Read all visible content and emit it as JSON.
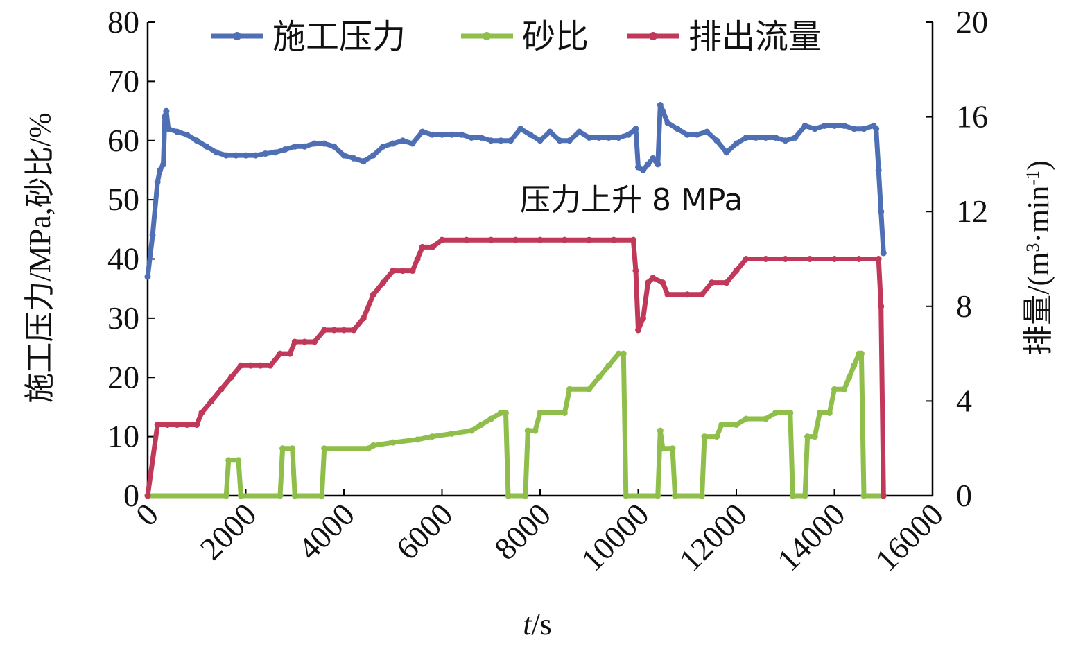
{
  "chart_data": {
    "type": "line",
    "xlabel_italic": "t",
    "xlabel_rest": "/s",
    "ylabel_left": "施工压力/MPa,砂比/%",
    "ylabel_right_a": "排量/(m",
    "ylabel_right_sup": "3",
    "ylabel_right_b": "·min",
    "ylabel_right_sup2": "-1",
    "ylabel_right_c": ")",
    "xlim": [
      0,
      16000
    ],
    "ylim_left": [
      0,
      80
    ],
    "ylim_right": [
      0,
      20
    ],
    "x_ticks": [
      "0",
      "2000",
      "4000",
      "6000",
      "8000",
      "10000",
      "12000",
      "14000",
      "16000"
    ],
    "y_left_ticks": [
      "0",
      "10",
      "20",
      "30",
      "40",
      "50",
      "60",
      "70",
      "80"
    ],
    "y_right_ticks": [
      "0",
      "4",
      "8",
      "12",
      "16",
      "20"
    ],
    "legend_position": "top",
    "annotation": "压力上升 8 MPa",
    "series": [
      {
        "name": "施工压力",
        "axis": "left",
        "color": "#4f6fb5",
        "points": [
          [
            0,
            37
          ],
          [
            100,
            44
          ],
          [
            200,
            53
          ],
          [
            250,
            55
          ],
          [
            320,
            56
          ],
          [
            350,
            64
          ],
          [
            380,
            65
          ],
          [
            420,
            62
          ],
          [
            600,
            61.5
          ],
          [
            800,
            61
          ],
          [
            1000,
            60
          ],
          [
            1200,
            59
          ],
          [
            1400,
            58
          ],
          [
            1600,
            57.5
          ],
          [
            1800,
            57.5
          ],
          [
            2000,
            57.5
          ],
          [
            2200,
            57.5
          ],
          [
            2400,
            57.8
          ],
          [
            2600,
            58
          ],
          [
            2800,
            58.5
          ],
          [
            3000,
            59
          ],
          [
            3200,
            59
          ],
          [
            3400,
            59.5
          ],
          [
            3600,
            59.5
          ],
          [
            3800,
            59
          ],
          [
            4000,
            57.5
          ],
          [
            4200,
            57
          ],
          [
            4400,
            56.5
          ],
          [
            4600,
            57.5
          ],
          [
            4800,
            59
          ],
          [
            5000,
            59.5
          ],
          [
            5200,
            60
          ],
          [
            5400,
            59.5
          ],
          [
            5600,
            61.5
          ],
          [
            5800,
            61
          ],
          [
            6000,
            61
          ],
          [
            6200,
            61
          ],
          [
            6400,
            61
          ],
          [
            6600,
            60.5
          ],
          [
            6800,
            60.5
          ],
          [
            7000,
            60
          ],
          [
            7200,
            60
          ],
          [
            7400,
            60
          ],
          [
            7600,
            62
          ],
          [
            7800,
            61
          ],
          [
            8000,
            60
          ],
          [
            8200,
            61.5
          ],
          [
            8400,
            60
          ],
          [
            8600,
            60
          ],
          [
            8800,
            61.5
          ],
          [
            9000,
            60.5
          ],
          [
            9200,
            60.5
          ],
          [
            9400,
            60.5
          ],
          [
            9600,
            60.5
          ],
          [
            9800,
            61
          ],
          [
            9950,
            62
          ],
          [
            10000,
            55.5
          ],
          [
            10100,
            55
          ],
          [
            10200,
            56
          ],
          [
            10300,
            57
          ],
          [
            10400,
            56
          ],
          [
            10450,
            66
          ],
          [
            10500,
            65
          ],
          [
            10600,
            63
          ],
          [
            10800,
            62
          ],
          [
            11000,
            61
          ],
          [
            11200,
            61
          ],
          [
            11400,
            61.5
          ],
          [
            11600,
            60
          ],
          [
            11800,
            58
          ],
          [
            12000,
            59.5
          ],
          [
            12200,
            60.5
          ],
          [
            12400,
            60.5
          ],
          [
            12600,
            60.5
          ],
          [
            12800,
            60.5
          ],
          [
            13000,
            60
          ],
          [
            13200,
            60.5
          ],
          [
            13400,
            62.5
          ],
          [
            13600,
            62
          ],
          [
            13800,
            62.5
          ],
          [
            14000,
            62.5
          ],
          [
            14200,
            62.5
          ],
          [
            14400,
            62
          ],
          [
            14600,
            62
          ],
          [
            14800,
            62.5
          ],
          [
            14850,
            62
          ],
          [
            14900,
            55
          ],
          [
            14950,
            48
          ],
          [
            15000,
            41
          ]
        ]
      },
      {
        "name": "砂比",
        "axis": "left",
        "color": "#8fbe4a",
        "points": [
          [
            0,
            0
          ],
          [
            1600,
            0
          ],
          [
            1650,
            6
          ],
          [
            1850,
            6
          ],
          [
            1900,
            0
          ],
          [
            2700,
            0
          ],
          [
            2750,
            8
          ],
          [
            2950,
            8
          ],
          [
            3000,
            0
          ],
          [
            3550,
            0
          ],
          [
            3600,
            8
          ],
          [
            4500,
            8
          ],
          [
            4600,
            8.5
          ],
          [
            5000,
            9
          ],
          [
            5500,
            9.5
          ],
          [
            5800,
            10
          ],
          [
            6200,
            10.5
          ],
          [
            6600,
            11
          ],
          [
            6800,
            12
          ],
          [
            7000,
            13
          ],
          [
            7200,
            14
          ],
          [
            7300,
            14
          ],
          [
            7350,
            0
          ],
          [
            7700,
            0
          ],
          [
            7750,
            11
          ],
          [
            7900,
            11
          ],
          [
            8000,
            14
          ],
          [
            8500,
            14
          ],
          [
            8600,
            18
          ],
          [
            9000,
            18
          ],
          [
            9200,
            20
          ],
          [
            9400,
            22
          ],
          [
            9600,
            24
          ],
          [
            9700,
            24
          ],
          [
            9750,
            0
          ],
          [
            10400,
            0
          ],
          [
            10450,
            11
          ],
          [
            10500,
            8
          ],
          [
            10700,
            8
          ],
          [
            10750,
            0
          ],
          [
            11300,
            0
          ],
          [
            11350,
            10
          ],
          [
            11600,
            10
          ],
          [
            11700,
            12
          ],
          [
            12000,
            12
          ],
          [
            12200,
            13
          ],
          [
            12600,
            13
          ],
          [
            12800,
            14
          ],
          [
            13100,
            14
          ],
          [
            13150,
            0
          ],
          [
            13400,
            0
          ],
          [
            13450,
            10
          ],
          [
            13600,
            10
          ],
          [
            13700,
            14
          ],
          [
            13900,
            14
          ],
          [
            14000,
            18
          ],
          [
            14200,
            18
          ],
          [
            14300,
            20
          ],
          [
            14400,
            22
          ],
          [
            14500,
            24
          ],
          [
            14550,
            24
          ],
          [
            14600,
            0
          ],
          [
            15000,
            0
          ]
        ]
      },
      {
        "name": "排出流量",
        "axis": "right",
        "color": "#c0395a",
        "points": [
          [
            0,
            0
          ],
          [
            200,
            3
          ],
          [
            400,
            3
          ],
          [
            600,
            3
          ],
          [
            800,
            3
          ],
          [
            1000,
            3
          ],
          [
            1100,
            3.5
          ],
          [
            1300,
            4
          ],
          [
            1500,
            4.5
          ],
          [
            1700,
            5
          ],
          [
            1900,
            5.5
          ],
          [
            2100,
            5.5
          ],
          [
            2300,
            5.5
          ],
          [
            2500,
            5.5
          ],
          [
            2700,
            6
          ],
          [
            2900,
            6
          ],
          [
            3000,
            6.5
          ],
          [
            3200,
            6.5
          ],
          [
            3400,
            6.5
          ],
          [
            3600,
            7
          ],
          [
            3800,
            7
          ],
          [
            4000,
            7
          ],
          [
            4200,
            7
          ],
          [
            4400,
            7.5
          ],
          [
            4600,
            8.5
          ],
          [
            4800,
            9
          ],
          [
            5000,
            9.5
          ],
          [
            5200,
            9.5
          ],
          [
            5400,
            9.5
          ],
          [
            5500,
            10
          ],
          [
            5600,
            10.5
          ],
          [
            5800,
            10.5
          ],
          [
            6000,
            10.8
          ],
          [
            6500,
            10.8
          ],
          [
            7000,
            10.8
          ],
          [
            7500,
            10.8
          ],
          [
            8000,
            10.8
          ],
          [
            8500,
            10.8
          ],
          [
            9000,
            10.8
          ],
          [
            9500,
            10.8
          ],
          [
            9900,
            10.8
          ],
          [
            9950,
            9.5
          ],
          [
            10000,
            7
          ],
          [
            10100,
            7.5
          ],
          [
            10200,
            9
          ],
          [
            10300,
            9.2
          ],
          [
            10500,
            9
          ],
          [
            10600,
            8.5
          ],
          [
            11000,
            8.5
          ],
          [
            11300,
            8.5
          ],
          [
            11500,
            9
          ],
          [
            11800,
            9
          ],
          [
            12000,
            9.5
          ],
          [
            12200,
            10
          ],
          [
            12600,
            10
          ],
          [
            13000,
            10
          ],
          [
            13500,
            10
          ],
          [
            14000,
            10
          ],
          [
            14500,
            10
          ],
          [
            14900,
            10
          ],
          [
            14950,
            8
          ],
          [
            15000,
            0
          ]
        ]
      }
    ]
  }
}
